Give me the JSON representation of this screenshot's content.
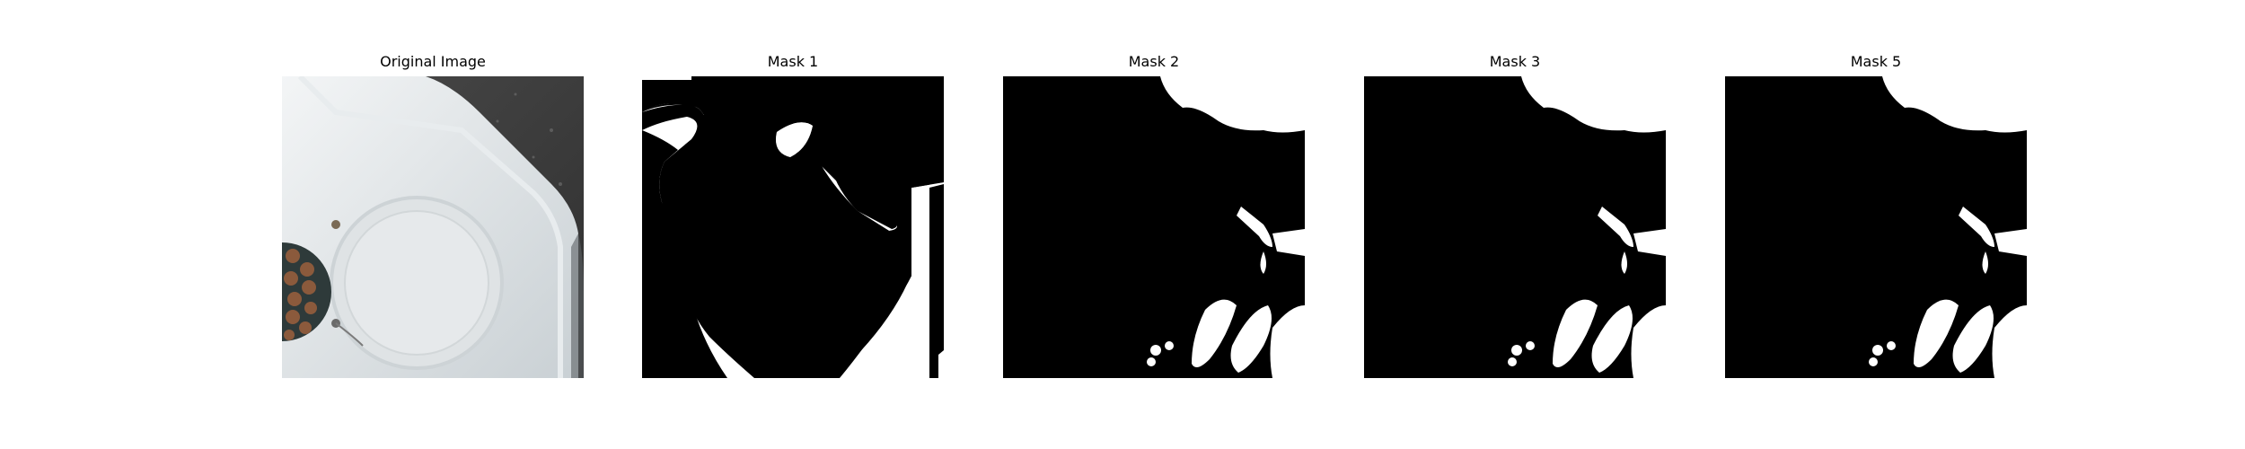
{
  "figure": {
    "panels": [
      {
        "id": "original",
        "title": "Original Image",
        "kind": "photo"
      },
      {
        "id": "mask-1",
        "title": "Mask 1",
        "kind": "binary-mask"
      },
      {
        "id": "mask-2",
        "title": "Mask 2",
        "kind": "binary-mask"
      },
      {
        "id": "mask-3",
        "title": "Mask 3",
        "kind": "binary-mask"
      },
      {
        "id": "mask-5",
        "title": "Mask 5",
        "kind": "binary-mask"
      }
    ]
  }
}
